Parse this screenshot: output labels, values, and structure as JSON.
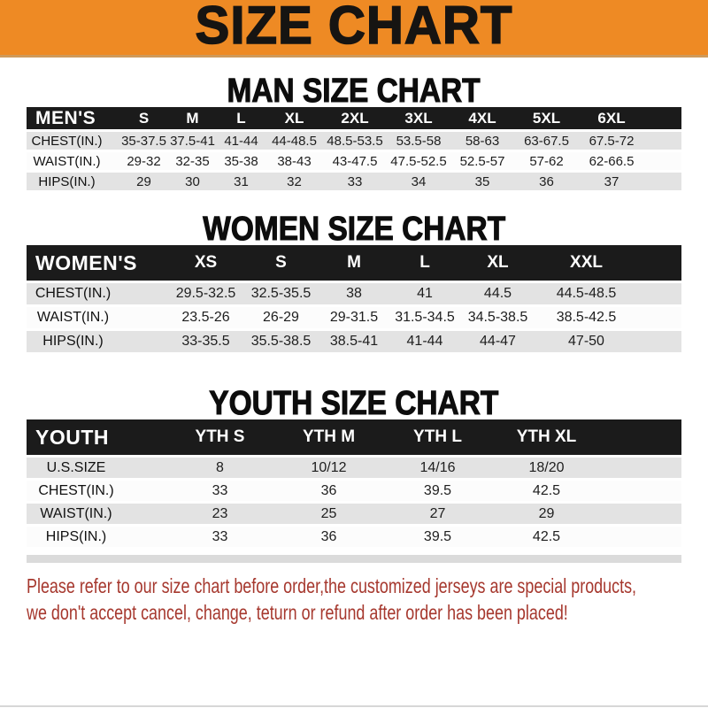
{
  "banner": {
    "title": "SIZE CHART"
  },
  "colors": {
    "banner_bg": "#ee8a24",
    "header_band_bg": "#1b1b1b",
    "row_alt_bg": "#e3e3e3",
    "note_text": "#a6382e"
  },
  "sections": [
    {
      "heading": "MAN SIZE CHART",
      "table": {
        "corner_label": "MEN'S",
        "columns": [
          "S",
          "M",
          "L",
          "XL",
          "2XL",
          "3XL",
          "4XL",
          "5XL",
          "6XL"
        ],
        "rows": [
          {
            "label": "CHEST(IN.)",
            "values": [
              "35-37.5",
              "37.5-41",
              "41-44",
              "44-48.5",
              "48.5-53.5",
              "53.5-58",
              "58-63",
              "63-67.5",
              "67.5-72"
            ]
          },
          {
            "label": "WAIST(IN.)",
            "values": [
              "29-32",
              "32-35",
              "35-38",
              "38-43",
              "43-47.5",
              "47.5-52.5",
              "52.5-57",
              "57-62",
              "62-66.5"
            ]
          },
          {
            "label": "HIPS(IN.)",
            "values": [
              "29",
              "30",
              "31",
              "32",
              "33",
              "34",
              "35",
              "36",
              "37"
            ]
          }
        ]
      }
    },
    {
      "heading": "WOMEN SIZE CHART",
      "table": {
        "corner_label": "WOMEN'S",
        "columns": [
          "XS",
          "S",
          "M",
          "L",
          "XL",
          "XXL"
        ],
        "rows": [
          {
            "label": "CHEST(IN.)",
            "values": [
              "29.5-32.5",
              "32.5-35.5",
              "38",
              "41",
              "44.5",
              "44.5-48.5"
            ]
          },
          {
            "label": "WAIST(IN.)",
            "values": [
              "23.5-26",
              "26-29",
              "29-31.5",
              "31.5-34.5",
              "34.5-38.5",
              "38.5-42.5"
            ]
          },
          {
            "label": "HIPS(IN.)",
            "values": [
              "33-35.5",
              "35.5-38.5",
              "38.5-41",
              "41-44",
              "44-47",
              "47-50"
            ]
          }
        ]
      }
    },
    {
      "heading": "YOUTH SIZE CHART",
      "table": {
        "corner_label": "YOUTH",
        "columns": [
          "YTH S",
          "YTH M",
          "YTH L",
          "YTH XL"
        ],
        "rows": [
          {
            "label": "U.S.SIZE",
            "values": [
              "8",
              "10/12",
              "14/16",
              "18/20"
            ]
          },
          {
            "label": "CHEST(IN.)",
            "values": [
              "33",
              "36",
              "39.5",
              "42.5"
            ]
          },
          {
            "label": "WAIST(IN.)",
            "values": [
              "23",
              "25",
              "27",
              "29"
            ]
          },
          {
            "label": "HIPS(IN.)",
            "values": [
              "33",
              "36",
              "39.5",
              "42.5"
            ]
          }
        ]
      }
    }
  ],
  "note": {
    "lines": [
      "Please refer to our size chart before order,the customized jerseys are special products,",
      "we don't accept cancel, change, teturn or refund after order has been placed!"
    ]
  }
}
